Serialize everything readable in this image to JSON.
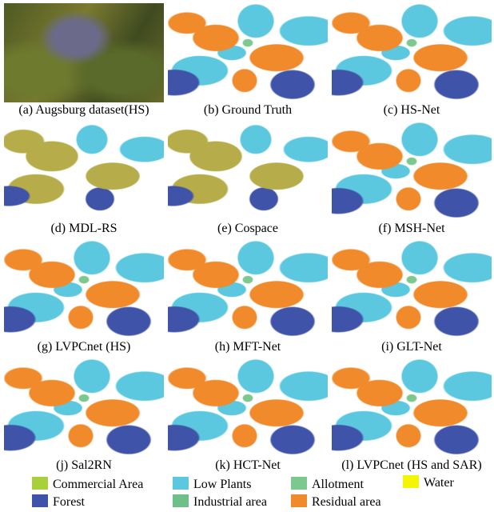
{
  "panels": [
    {
      "caption": "(a) Augsburg dataset(HS)"
    },
    {
      "caption": "(b) Ground Truth"
    },
    {
      "caption": "(c) HS-Net"
    },
    {
      "caption": "(d) MDL-RS"
    },
    {
      "caption": "(e) Cospace"
    },
    {
      "caption": "(f) MSH-Net"
    },
    {
      "caption": "(g) LVPCnet (HS)"
    },
    {
      "caption": "(h) MFT-Net"
    },
    {
      "caption": "(i) GLT-Net"
    },
    {
      "caption": "(j) Sal2RN"
    },
    {
      "caption": "(k) HCT-Net"
    },
    {
      "caption": "(l) LVPCnet (HS and SAR)"
    }
  ],
  "legend": [
    {
      "label": "Commercial Area"
    },
    {
      "label": "Low Plants"
    },
    {
      "label": "Allotment"
    },
    {
      "label": "Water"
    },
    {
      "label": "Forest"
    },
    {
      "label": "Industrial area"
    },
    {
      "label": "Residual area"
    }
  ]
}
